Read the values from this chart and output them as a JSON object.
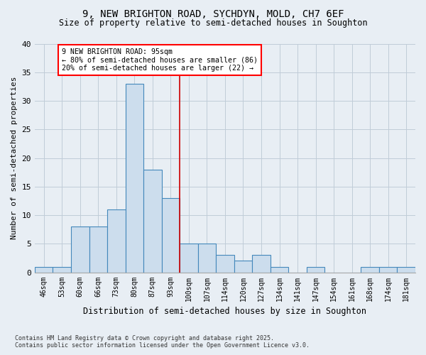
{
  "title_line1": "9, NEW BRIGHTON ROAD, SYCHDYN, MOLD, CH7 6EF",
  "title_line2": "Size of property relative to semi-detached houses in Soughton",
  "xlabel": "Distribution of semi-detached houses by size in Soughton",
  "ylabel": "Number of semi-detached properties",
  "categories": [
    "46sqm",
    "53sqm",
    "60sqm",
    "66sqm",
    "73sqm",
    "80sqm",
    "87sqm",
    "93sqm",
    "100sqm",
    "107sqm",
    "114sqm",
    "120sqm",
    "127sqm",
    "134sqm",
    "141sqm",
    "147sqm",
    "154sqm",
    "161sqm",
    "168sqm",
    "174sqm",
    "181sqm"
  ],
  "values": [
    1,
    1,
    8,
    8,
    11,
    33,
    18,
    13,
    5,
    5,
    3,
    2,
    3,
    1,
    0,
    1,
    0,
    0,
    1,
    1,
    1
  ],
  "bar_color": "#ccdded",
  "bar_edge_color": "#4488bb",
  "vline_x_index": 7,
  "vline_color": "#cc0000",
  "ylim": [
    0,
    40
  ],
  "yticks": [
    0,
    5,
    10,
    15,
    20,
    25,
    30,
    35,
    40
  ],
  "annotation_title": "9 NEW BRIGHTON ROAD: 95sqm",
  "annotation_line1": "← 80% of semi-detached houses are smaller (86)",
  "annotation_line2": "20% of semi-detached houses are larger (22) →",
  "footnote_line1": "Contains HM Land Registry data © Crown copyright and database right 2025.",
  "footnote_line2": "Contains public sector information licensed under the Open Government Licence v3.0.",
  "background_color": "#e8eef4",
  "plot_background_color": "#e8eef4",
  "grid_color": "#c0ccd8"
}
